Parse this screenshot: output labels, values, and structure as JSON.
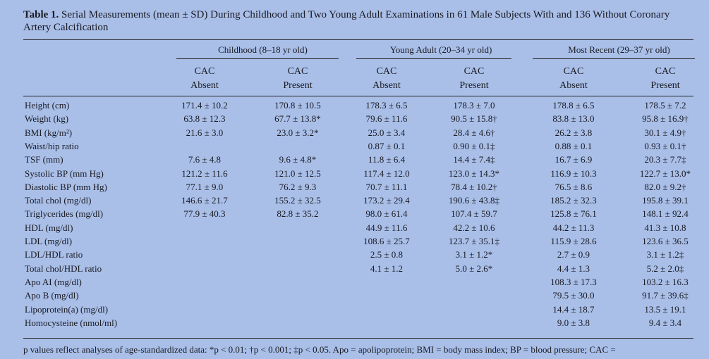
{
  "table": {
    "title_label": "Table 1.",
    "title_text": "Serial Measurements (mean ± SD) During Childhood and Two Young Adult Examinations in 61 Male Subjects With and 136 Without Coronary Artery Calcification",
    "groups": [
      "Childhood (8–18 yr old)",
      "Young Adult (20–34 yr old)",
      "Most Recent (29–37 yr old)"
    ],
    "subheaders": [
      {
        "line1": "CAC",
        "line2": "Absent"
      },
      {
        "line1": "CAC",
        "line2": "Present"
      },
      {
        "line1": "CAC",
        "line2": "Absent"
      },
      {
        "line1": "CAC",
        "line2": "Present"
      },
      {
        "line1": "CAC",
        "line2": "Absent"
      },
      {
        "line1": "CAC",
        "line2": "Present"
      }
    ],
    "rows": [
      {
        "label": "Height (cm)",
        "cells": [
          "171.4 ± 10.2",
          "170.8 ± 10.5",
          "178.3 ± 6.5",
          "178.3 ± 7.0",
          "178.8 ± 6.5",
          "178.5 ± 7.2"
        ]
      },
      {
        "label": "Weight (kg)",
        "cells": [
          "63.8 ± 12.3",
          "67.7 ± 13.8*",
          "79.6 ± 11.6",
          "90.5 ± 15.8†",
          "83.8 ± 13.0",
          "95.8 ± 16.9†"
        ]
      },
      {
        "label": "BMI (kg/m²)",
        "cells": [
          "21.6 ± 3.0",
          "23.0 ± 3.2*",
          "25.0 ± 3.4",
          "28.4 ± 4.6†",
          "26.2 ± 3.8",
          "30.1 ± 4.9†"
        ]
      },
      {
        "label": "Waist/hip ratio",
        "cells": [
          "",
          "",
          "0.87 ± 0.1",
          "0.90 ± 0.1‡",
          "0.88 ± 0.1",
          "0.93 ± 0.1†"
        ]
      },
      {
        "label": "TSF (mm)",
        "cells": [
          "7.6 ± 4.8",
          "9.6 ± 4.8*",
          "11.8 ± 6.4",
          "14.4 ± 7.4‡",
          "16.7 ± 6.9",
          "20.3 ± 7.7‡"
        ]
      },
      {
        "label": "Systolic BP (mm Hg)",
        "cells": [
          "121.2 ± 11.6",
          "121.0 ± 12.5",
          "117.4 ± 12.0",
          "123.0 ± 14.3*",
          "116.9 ± 10.3",
          "122.7 ± 13.0*"
        ]
      },
      {
        "label": "Diastolic BP (mm Hg)",
        "cells": [
          "77.1 ± 9.0",
          "76.2 ± 9.3",
          "70.7 ± 11.1",
          "78.4 ± 10.2†",
          "76.5 ± 8.6",
          "82.0 ± 9.2†"
        ]
      },
      {
        "label": "Total chol (mg/dl)",
        "cells": [
          "146.6 ± 21.7",
          "155.2 ± 32.5",
          "173.2 ± 29.4",
          "190.6 ± 43.8‡",
          "185.2 ± 32.3",
          "195.8 ± 39.1"
        ]
      },
      {
        "label": "Triglycerides (mg/dl)",
        "cells": [
          "77.9 ± 40.3",
          "82.8 ± 35.2",
          "98.0 ± 61.4",
          "107.4 ± 59.7",
          "125.8 ± 76.1",
          "148.1 ± 92.4"
        ]
      },
      {
        "label": "HDL (mg/dl)",
        "cells": [
          "",
          "",
          "44.9 ± 11.6",
          "42.2 ± 10.6",
          "44.2 ± 11.3",
          "41.3 ± 10.8"
        ]
      },
      {
        "label": "LDL (mg/dl)",
        "cells": [
          "",
          "",
          "108.6 ± 25.7",
          "123.7 ± 35.1‡",
          "115.9 ± 28.6",
          "123.6 ± 36.5"
        ]
      },
      {
        "label": "LDL/HDL ratio",
        "cells": [
          "",
          "",
          "2.5 ± 0.8",
          "3.1 ± 1.2*",
          "2.7 ± 0.9",
          "3.1 ± 1.2‡"
        ]
      },
      {
        "label": "Total chol/HDL ratio",
        "cells": [
          "",
          "",
          "4.1 ± 1.2",
          "5.0 ± 2.6*",
          "4.4 ± 1.3",
          "5.2 ± 2.0‡"
        ]
      },
      {
        "label": "Apo AI (mg/dl)",
        "cells": [
          "",
          "",
          "",
          "",
          "108.3 ± 17.3",
          "103.2 ± 16.3"
        ]
      },
      {
        "label": "Apo B (mg/dl)",
        "cells": [
          "",
          "",
          "",
          "",
          "79.5 ± 30.0",
          "91.7 ± 39.6‡"
        ]
      },
      {
        "label": "Lipoprotein(a) (mg/dl)",
        "cells": [
          "",
          "",
          "",
          "",
          "14.4 ± 18.7",
          "13.5 ± 19.1"
        ]
      },
      {
        "label": "Homocysteine (nmol/ml)",
        "cells": [
          "",
          "",
          "",
          "",
          "9.0 ± 3.8",
          "9.4 ± 3.4"
        ]
      }
    ],
    "footnote": "p values reflect analyses of age-standardized data: *p < 0.01; †p < 0.001; ‡p < 0.05. Apo = apolipoprotein; BMI = body mass index; BP = blood pressure; CAC ="
  }
}
